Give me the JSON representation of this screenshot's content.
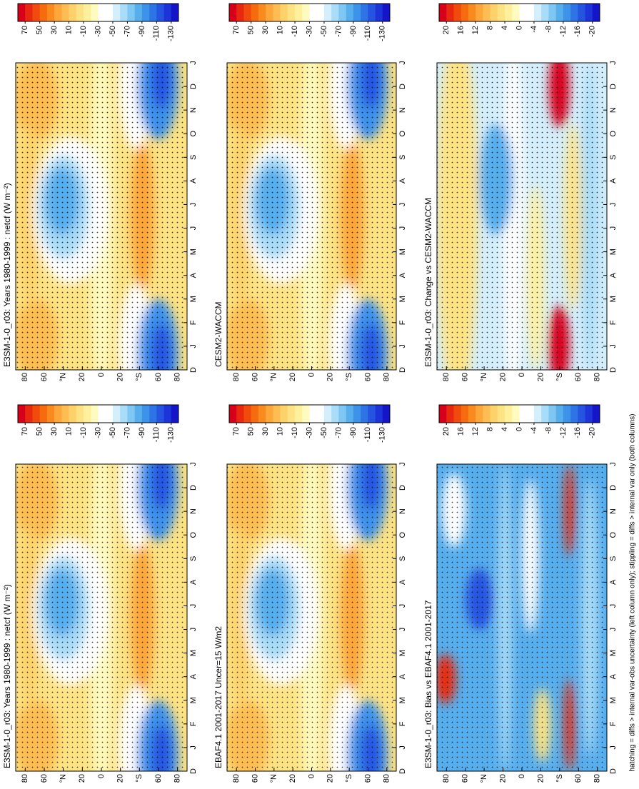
{
  "chart_data": {
    "type": "contour",
    "colormap": [
      "#d7001a",
      "#e8290f",
      "#f04a0c",
      "#f76b0f",
      "#fb8a1e",
      "#fda63a",
      "#fdbd53",
      "#fed26b",
      "#fee384",
      "#fff09e",
      "#fffac0",
      "#ffffff",
      "#ffffff",
      "#d4eefc",
      "#a9dcf7",
      "#7ec7f2",
      "#57aeed",
      "#3d92ea",
      "#2f74e6",
      "#2554e0",
      "#1c34d8",
      "#1414c8"
    ],
    "categories": [
      "D",
      "J",
      "F",
      "M",
      "A",
      "M",
      "J",
      "J",
      "A",
      "S",
      "O",
      "N",
      "D",
      "J"
    ],
    "xlim": [
      90,
      -90
    ],
    "xticks": [
      80,
      60,
      {
        "value": 40,
        "label": "°N"
      },
      20,
      0,
      {
        "value": -20,
        "label": "20"
      },
      {
        "value": -40,
        "label": "°S"
      },
      {
        "value": -60,
        "label": "60"
      },
      {
        "value": -80,
        "label": "80"
      }
    ],
    "panels": [
      {
        "title": "E3SM-1-0_r03: Years 1980-1999 : netcf (W m⁻²)",
        "colorbar": {
          "lim": [
            80,
            -140
          ],
          "ticks": [
            70,
            50,
            30,
            10,
            -10,
            -30,
            -50,
            -70,
            -90,
            -110,
            -130
          ]
        }
      },
      {
        "title": "CESM2-WACCM",
        "colorbar": {
          "lim": [
            80,
            -140
          ],
          "ticks": [
            70,
            50,
            30,
            10,
            -10,
            -30,
            -50,
            -70,
            -90,
            -110,
            -130
          ]
        }
      },
      {
        "title": "E3SM-1-0_r03: Change vs CESM2-WACCM",
        "colorbar": {
          "lim": [
            22,
            -22
          ],
          "ticks": [
            20,
            16,
            12,
            8,
            4,
            0,
            -4,
            -8,
            -12,
            -16,
            -20
          ]
        }
      },
      {
        "title": "E3SM-1-0_r03: Years 1980-1999 : netcf (W m⁻²)",
        "colorbar": {
          "lim": [
            80,
            -140
          ],
          "ticks": [
            70,
            50,
            30,
            10,
            -10,
            -30,
            -50,
            -70,
            -90,
            -110,
            -130
          ]
        }
      },
      {
        "title": "EBAF4.1 2001-2017 Uncer=15 W/m2",
        "colorbar": {
          "lim": [
            80,
            -140
          ],
          "ticks": [
            70,
            50,
            30,
            10,
            -10,
            -30,
            -50,
            -70,
            -90,
            -110,
            -130
          ]
        }
      },
      {
        "title": "E3SM-1-0_r03: Bias vs EBAF4.1 2001-2017",
        "colorbar": {
          "lim": [
            22,
            -22
          ],
          "ticks": [
            20,
            16,
            12,
            8,
            4,
            0,
            -4,
            -8,
            -12,
            -16,
            -20
          ]
        }
      }
    ],
    "footnote": "hatching = diffs > internal var-obs uncertainty (left column only); stippling = diffs > internal var only (both columns)"
  }
}
